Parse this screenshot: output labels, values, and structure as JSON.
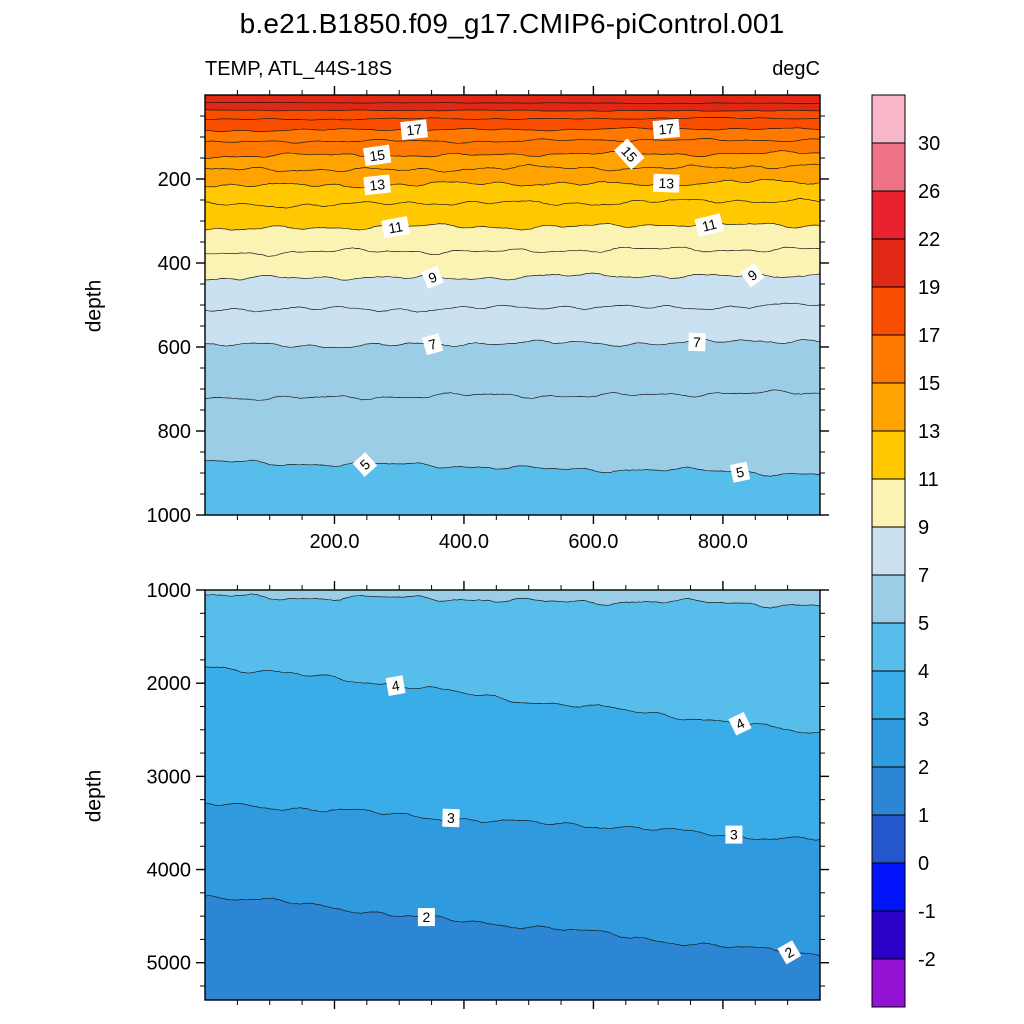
{
  "title": "b.e21.B1850.f09_g17.CMIP6-piControl.001",
  "subtitle_left": "TEMP, ATL_44S-18S",
  "subtitle_right": "degC",
  "ylabel": "depth",
  "chart_data": {
    "type": "heatmap",
    "subtype": "filled-contour-depth-section",
    "title": "b.e21.B1850.f09_g17.CMIP6-piControl.001",
    "field": "TEMP, ATL_44S-18S",
    "units": "degC",
    "xlabel": "",
    "ylabel": "depth",
    "x_axis": {
      "range": [
        0,
        950
      ],
      "ticks": [
        200,
        400,
        600,
        800
      ],
      "tick_labels": [
        "200.0",
        "400.0",
        "600.0",
        "800.0"
      ],
      "minor_step": 50
    },
    "colorbar": {
      "units": "degC",
      "boundaries": [
        30,
        26,
        22,
        19,
        17,
        15,
        13,
        11,
        9,
        7,
        5,
        4,
        3,
        2,
        1,
        0,
        -1,
        -2
      ],
      "colors": [
        "#F8B7C9",
        "#EF7387",
        "#E8222E",
        "#E02814",
        "#F94E00",
        "#FF7800",
        "#FFA300",
        "#FFC800",
        "#FAF3B4",
        "#C9E1F0",
        "#9CCDE6",
        "#57BEEC",
        "#3AACE8",
        "#2F9ADE",
        "#2C86D4",
        "#2457CC",
        "#0114FA",
        "#2B00C8",
        "#9412D4"
      ]
    },
    "panels": [
      {
        "name": "upper-section",
        "ylabel": "depth",
        "depth_range": [
          0,
          1000
        ],
        "y_ticks": [
          200,
          400,
          600,
          800,
          1000
        ],
        "y_minor_step": 50,
        "fill_levels": [
          19,
          17,
          15,
          13,
          11,
          9,
          7,
          5
        ],
        "contours": [
          {
            "level": 20,
            "d0": 18,
            "d1": 20,
            "labels": []
          },
          {
            "level": 19,
            "d0": 36,
            "d1": 38,
            "labels": []
          },
          {
            "level": 18,
            "d0": 58,
            "d1": 55,
            "labels": []
          },
          {
            "level": 17,
            "d0": 84,
            "d1": 80,
            "labels": [
              {
                "t": 0.34,
                "r": -6
              },
              {
                "t": 0.75,
                "r": -5
              }
            ]
          },
          {
            "level": 16,
            "d0": 112,
            "d1": 106,
            "labels": []
          },
          {
            "level": 15,
            "d0": 146,
            "d1": 138,
            "labels": [
              {
                "t": 0.28,
                "r": -8
              },
              {
                "t": 0.69,
                "r": 48
              }
            ]
          },
          {
            "level": 14,
            "d0": 180,
            "d1": 170,
            "labels": []
          },
          {
            "level": 13,
            "d0": 216,
            "d1": 208,
            "labels": [
              {
                "t": 0.28,
                "r": -6
              },
              {
                "t": 0.75,
                "r": 2
              }
            ]
          },
          {
            "level": 12,
            "d0": 262,
            "d1": 252,
            "labels": []
          },
          {
            "level": 11,
            "d0": 318,
            "d1": 308,
            "labels": [
              {
                "t": 0.31,
                "r": -10
              },
              {
                "t": 0.82,
                "r": -14
              }
            ]
          },
          {
            "level": 10,
            "d0": 376,
            "d1": 366,
            "labels": []
          },
          {
            "level": 9,
            "d0": 438,
            "d1": 428,
            "labels": [
              {
                "t": 0.37,
                "r": -22
              },
              {
                "t": 0.89,
                "r": -35
              }
            ]
          },
          {
            "level": 8,
            "d0": 512,
            "d1": 502,
            "labels": []
          },
          {
            "level": 7,
            "d0": 598,
            "d1": 586,
            "labels": [
              {
                "t": 0.37,
                "r": -16
              },
              {
                "t": 0.8,
                "r": 2
              }
            ]
          },
          {
            "level": 6,
            "d0": 722,
            "d1": 710,
            "labels": []
          },
          {
            "level": 5,
            "d0": 872,
            "d1": 902,
            "labels": [
              {
                "t": 0.26,
                "r": -42
              },
              {
                "t": 0.87,
                "r": -12
              }
            ]
          }
        ]
      },
      {
        "name": "lower-section",
        "ylabel": "depth",
        "depth_range": [
          1000,
          5400
        ],
        "y_ticks": [
          1000,
          2000,
          3000,
          4000,
          5000
        ],
        "y_minor_step": 250,
        "fill_levels": [
          5,
          4,
          3,
          2
        ],
        "contours": [
          {
            "level": 5,
            "d0": 1060,
            "d1": 1160,
            "labels": []
          },
          {
            "level": 4,
            "d0": 1800,
            "d1": 2530,
            "labels": [
              {
                "t": 0.31,
                "r": -10
              },
              {
                "t": 0.87,
                "r": -26
              }
            ]
          },
          {
            "level": 3,
            "d0": 3290,
            "d1": 3680,
            "labels": [
              {
                "t": 0.4,
                "r": 2
              },
              {
                "t": 0.86,
                "r": 0
              }
            ]
          },
          {
            "level": 2,
            "d0": 4280,
            "d1": 4920,
            "labels": [
              {
                "t": 0.36,
                "r": 0
              },
              {
                "t": 0.95,
                "r": -30
              }
            ]
          }
        ]
      }
    ]
  }
}
